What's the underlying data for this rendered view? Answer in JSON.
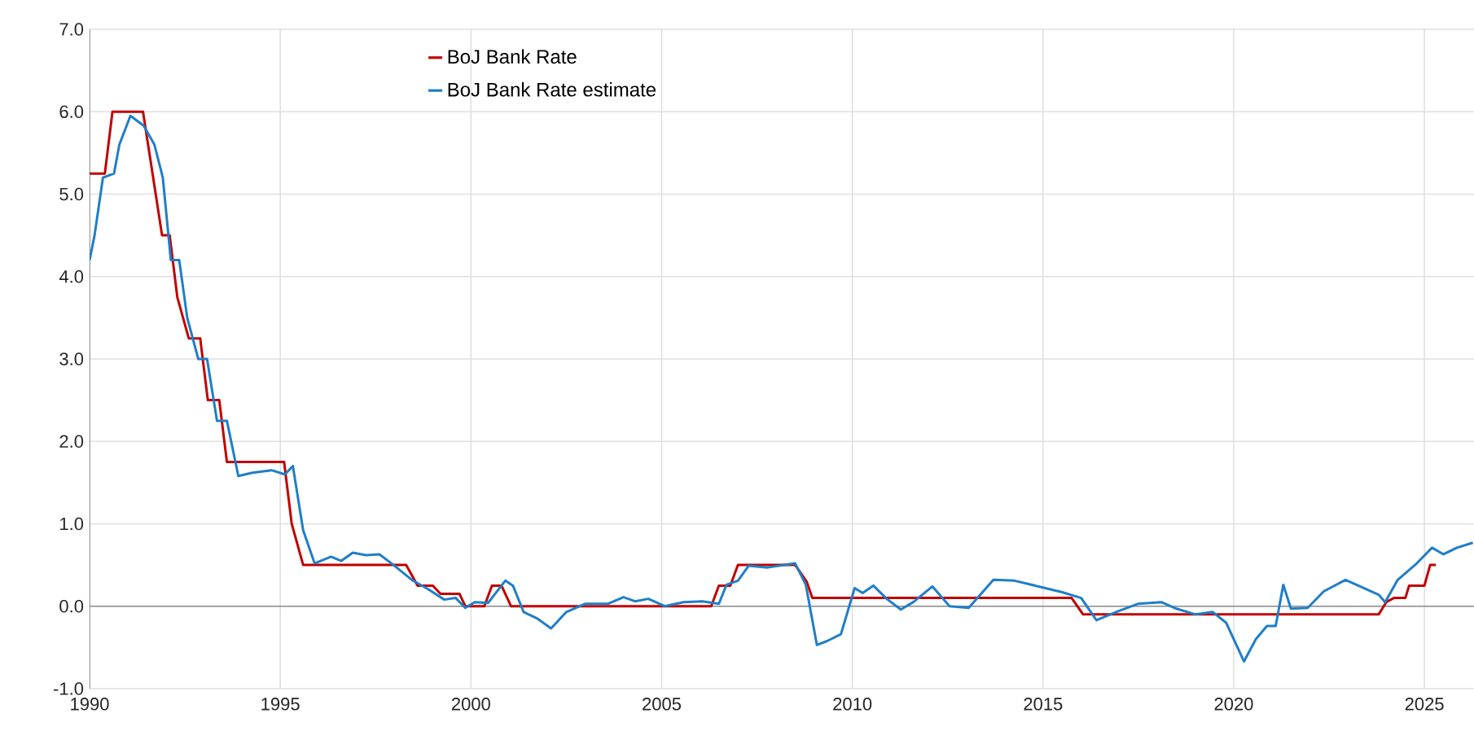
{
  "chart_data": {
    "type": "line",
    "xlim": [
      1990,
      2026.3
    ],
    "xticks": [
      1990,
      1995,
      2000,
      2005,
      2010,
      2015,
      2020,
      2025
    ],
    "ylim": [
      -1,
      7
    ],
    "yticks": [
      {
        "value": -1,
        "label": "-1.0"
      },
      {
        "value": 0,
        "label": "0.0"
      },
      {
        "value": 1,
        "label": "1.0"
      },
      {
        "value": 2,
        "label": "2.0"
      },
      {
        "value": 3,
        "label": "3.0"
      },
      {
        "value": 4,
        "label": "4.0"
      },
      {
        "value": 5,
        "label": "5.0"
      },
      {
        "value": 6,
        "label": "6.0"
      },
      {
        "value": 7,
        "label": "7.0"
      }
    ],
    "grid": true,
    "legend": "top",
    "marker": "none",
    "line_style": "solid",
    "series": [
      {
        "name": "BoJ Bank Rate",
        "color": "#c00000",
        "x": [
          1990.0,
          1990.4,
          1990.6,
          1991.4,
          1991.9,
          1992.1,
          1992.3,
          1992.6,
          1992.9,
          1993.1,
          1993.4,
          1993.6,
          1995.1,
          1995.3,
          1995.6,
          1998.3,
          1998.6,
          1999.0,
          1999.2,
          1999.7,
          1999.85,
          2000.35,
          2000.55,
          2000.8,
          2001.05,
          2006.3,
          2006.5,
          2006.8,
          2007.0,
          2008.5,
          2008.8,
          2008.95,
          2015.75,
          2016.05,
          2023.8,
          2024.0,
          2024.2,
          2024.5,
          2024.6,
          2025.0,
          2025.15,
          2025.3
        ],
        "values": [
          5.25,
          5.25,
          6.0,
          6.0,
          4.5,
          4.5,
          3.75,
          3.25,
          3.25,
          2.5,
          2.5,
          1.75,
          1.75,
          1.0,
          0.5,
          0.5,
          0.25,
          0.25,
          0.15,
          0.15,
          0.0,
          0.0,
          0.25,
          0.25,
          0.0,
          0.0,
          0.25,
          0.25,
          0.5,
          0.5,
          0.3,
          0.1,
          0.1,
          -0.1,
          -0.1,
          0.05,
          0.1,
          0.1,
          0.25,
          0.25,
          0.5,
          0.5
        ]
      },
      {
        "name": "BoJ Bank Rate estimate",
        "color": "#1f7ec8",
        "x": [
          1990.0,
          1990.13,
          1990.35,
          1990.64,
          1990.78,
          1991.07,
          1991.42,
          1991.7,
          1991.92,
          1992.13,
          1992.35,
          1992.56,
          1992.85,
          1993.08,
          1993.34,
          1993.6,
          1993.9,
          1994.27,
          1994.77,
          1995.12,
          1995.33,
          1995.6,
          1995.9,
          1996.33,
          1996.6,
          1996.9,
          1997.25,
          1997.6,
          1997.97,
          1998.45,
          1998.9,
          1999.3,
          1999.6,
          1999.85,
          2000.1,
          2000.45,
          2000.9,
          2001.1,
          2001.38,
          2001.74,
          2002.1,
          2002.5,
          2003.0,
          2003.6,
          2004.0,
          2004.3,
          2004.65,
          2005.08,
          2005.57,
          2006.07,
          2006.5,
          2006.7,
          2007.0,
          2007.28,
          2007.78,
          2008.5,
          2008.78,
          2009.07,
          2009.35,
          2009.7,
          2010.06,
          2010.27,
          2010.55,
          2010.9,
          2011.27,
          2011.6,
          2012.1,
          2012.55,
          2013.05,
          2013.7,
          2014.25,
          2014.97,
          2015.5,
          2016.0,
          2016.4,
          2016.97,
          2017.5,
          2018.1,
          2018.5,
          2019.0,
          2019.45,
          2019.8,
          2020.27,
          2020.58,
          2020.87,
          2021.1,
          2021.3,
          2021.5,
          2021.94,
          2022.36,
          2022.93,
          2023.36,
          2023.8,
          2023.97,
          2024.3,
          2024.8,
          2025.2,
          2025.5,
          2025.85,
          2026.27
        ],
        "values": [
          4.2,
          4.5,
          5.2,
          5.25,
          5.6,
          5.95,
          5.83,
          5.6,
          5.2,
          4.2,
          4.2,
          3.5,
          3.0,
          3.0,
          2.25,
          2.25,
          1.58,
          1.62,
          1.65,
          1.6,
          1.7,
          0.92,
          0.52,
          0.6,
          0.55,
          0.65,
          0.62,
          0.63,
          0.5,
          0.32,
          0.2,
          0.08,
          0.1,
          -0.02,
          0.05,
          0.04,
          0.31,
          0.25,
          -0.07,
          -0.15,
          -0.27,
          -0.07,
          0.03,
          0.03,
          0.11,
          0.06,
          0.09,
          0.0,
          0.05,
          0.06,
          0.03,
          0.26,
          0.31,
          0.49,
          0.47,
          0.52,
          0.26,
          -0.47,
          -0.42,
          -0.34,
          0.22,
          0.16,
          0.25,
          0.09,
          -0.04,
          0.05,
          0.24,
          0.0,
          -0.02,
          0.32,
          0.31,
          0.23,
          0.17,
          0.1,
          -0.17,
          -0.06,
          0.03,
          0.05,
          -0.03,
          -0.1,
          -0.07,
          -0.2,
          -0.67,
          -0.4,
          -0.24,
          -0.24,
          0.26,
          -0.03,
          -0.02,
          0.18,
          0.32,
          0.23,
          0.14,
          0.05,
          0.32,
          0.52,
          0.71,
          0.63,
          0.71,
          0.77
        ]
      }
    ]
  }
}
